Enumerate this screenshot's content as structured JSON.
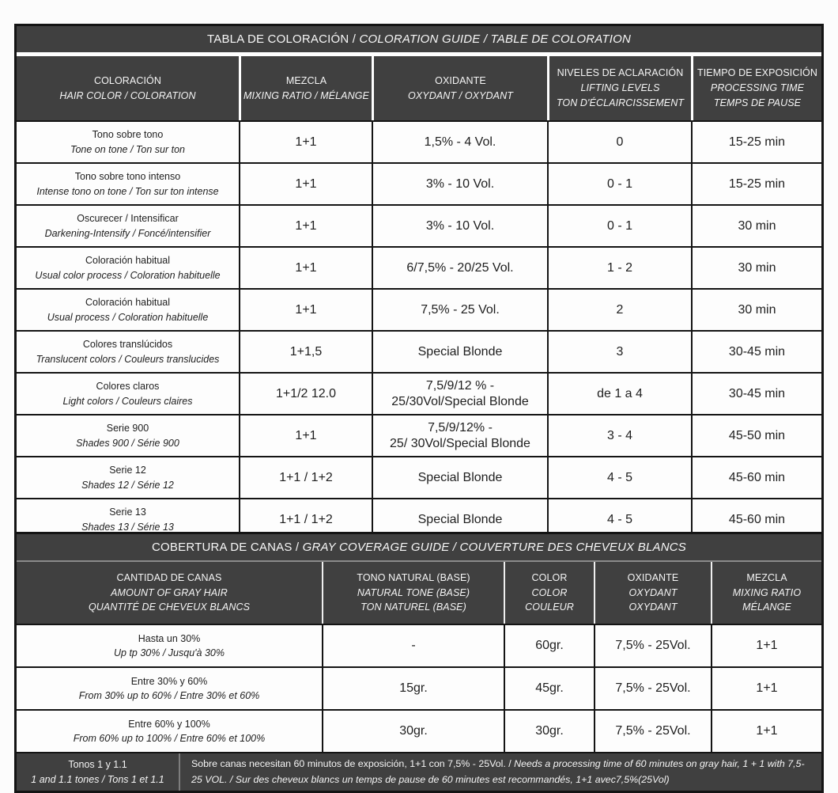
{
  "colors": {
    "header_bg": "#404040",
    "header_text": "#f5f5f5",
    "body_bg": "#ffffff",
    "border": "#141414"
  },
  "coloration_table": {
    "title": {
      "normal": "TABLA DE COLORACIÓN / ",
      "italic": "COLORATION GUIDE / TABLE DE COLORATION"
    },
    "columns": [
      {
        "main": "COLORACIÓN",
        "sub1": "HAIR COLOR / COLORATION",
        "sub2": ""
      },
      {
        "main": "MEZCLA",
        "sub1": "MIXING RATIO / MÉLANGE",
        "sub2": ""
      },
      {
        "main": "OXIDANTE",
        "sub1": "OXYDANT / OXYDANT",
        "sub2": ""
      },
      {
        "main": "NIVELES DE ACLARACIÓN",
        "sub1": "LIFTING LEVELS",
        "sub2": "TON D'ÉCLAIRCISSEMENT"
      },
      {
        "main": "TIEMPO DE EXPOSICIÓN",
        "sub1": "PROCESSING TIME",
        "sub2": "TEMPS DE PAUSE"
      }
    ],
    "rows": [
      {
        "label_es": "Tono sobre tono",
        "label_intl": "Tone on tone / Ton sur ton",
        "mixing": "1+1",
        "oxidant": "1,5% - 4 Vol.",
        "lifting": "0",
        "time": "15-25 min"
      },
      {
        "label_es": "Tono sobre tono intenso",
        "label_intl": "Intense tono on tone / Ton sur ton intense",
        "mixing": "1+1",
        "oxidant": "3% - 10 Vol.",
        "lifting": "0 - 1",
        "time": "15-25 min"
      },
      {
        "label_es": "Oscurecer / Intensificar",
        "label_intl": "Darkening-Intensify / Foncé/intensifier",
        "mixing": "1+1",
        "oxidant": "3% - 10 Vol.",
        "lifting": "0 - 1",
        "time": "30 min"
      },
      {
        "label_es": "Coloración habitual",
        "label_intl": "Usual color process / Coloration habituelle",
        "mixing": "1+1",
        "oxidant": "6/7,5% - 20/25 Vol.",
        "lifting": "1 - 2",
        "time": "30 min"
      },
      {
        "label_es": "Coloración habitual",
        "label_intl": "Usual process / Coloration habituelle",
        "mixing": "1+1",
        "oxidant": "7,5% - 25 Vol.",
        "lifting": "2",
        "time": "30 min"
      },
      {
        "label_es": "Colores translúcidos",
        "label_intl": "Translucent colors / Couleurs translucides",
        "mixing": "1+1,5",
        "oxidant": "Special Blonde",
        "lifting": "3",
        "time": "30-45 min"
      },
      {
        "label_es": "Colores claros",
        "label_intl": "Light colors / Couleurs claires",
        "mixing": "1+1/2 12.0",
        "oxidant": "7,5/9/12 % -\n25/30Vol/Special Blonde",
        "lifting": "de 1 a 4",
        "time": "30-45 min"
      },
      {
        "label_es": "Serie 900",
        "label_intl": "Shades 900 / Série 900",
        "mixing": "1+1",
        "oxidant": "7,5/9/12% -\n25/ 30Vol/Special Blonde",
        "lifting": "3 - 4",
        "time": "45-50 min"
      },
      {
        "label_es": "Serie 12",
        "label_intl": "Shades 12 / Série 12",
        "mixing": "1+1 / 1+2",
        "oxidant": "Special Blonde",
        "lifting": "4 - 5",
        "time": "45-60 min"
      },
      {
        "label_es": "Serie 13",
        "label_intl": "Shades 13 / Série 13",
        "mixing": "1+1 / 1+2",
        "oxidant": "Special Blonde",
        "lifting": "4 - 5",
        "time": "45-60 min"
      }
    ]
  },
  "gray_coverage_table": {
    "title": {
      "normal": "COBERTURA DE CANAS / ",
      "italic": "GRAY COVERAGE GUIDE / COUVERTURE DES CHEVEUX BLANCS"
    },
    "columns": [
      {
        "main": "CANTIDAD DE CANAS",
        "sub1": "AMOUNT OF GRAY HAIR",
        "sub2": "QUANTITÉ DE CHEVEUX BLANCS"
      },
      {
        "main": "TONO NATURAL (BASE)",
        "sub1": "NATURAL TONE (BASE)",
        "sub2": "TON NATUREL (BASE)"
      },
      {
        "main": "COLOR",
        "sub1": "COLOR",
        "sub2": "COULEUR"
      },
      {
        "main": "OXIDANTE",
        "sub1": "OXYDANT",
        "sub2": "OXYDANT"
      },
      {
        "main": "MEZCLA",
        "sub1": "MIXING RATIO",
        "sub2": "MÉLANGE"
      }
    ],
    "rows": [
      {
        "label_es": "Hasta un 30%",
        "label_intl": "Up tp 30% / Jusqu'à 30%",
        "natural_tone": "-",
        "color": "60gr.",
        "oxidant": "7,5% - 25Vol.",
        "mixing": "1+1"
      },
      {
        "label_es": "Entre 30% y 60%",
        "label_intl": "From 30% up to 60% / Entre 30% et 60%",
        "natural_tone": "15gr.",
        "color": "45gr.",
        "oxidant": "7,5% - 25Vol.",
        "mixing": "1+1"
      },
      {
        "label_es": "Entre 60% y 100%",
        "label_intl": "From 60% up to 100% / Entre 60% et 100%",
        "natural_tone": "30gr.",
        "color": "30gr.",
        "oxidant": "7,5% - 25Vol.",
        "mixing": "1+1"
      }
    ],
    "footer": {
      "label_es": "Tonos 1 y 1.1",
      "label_intl": "1 and 1.1 tones / Tons 1 et 1.1",
      "note_normal": "Sobre canas necesitan 60 minutos de exposición, 1+1 con 7,5% - 25Vol. / ",
      "note_italic": "Needs a processing time of 60 minutes on gray hair, 1 + 1 with 7,5-25 VOL. / Sur des cheveux blancs un temps de pause de 60 minutes est recommandés, 1+1 avec7,5%(25Vol)"
    }
  }
}
